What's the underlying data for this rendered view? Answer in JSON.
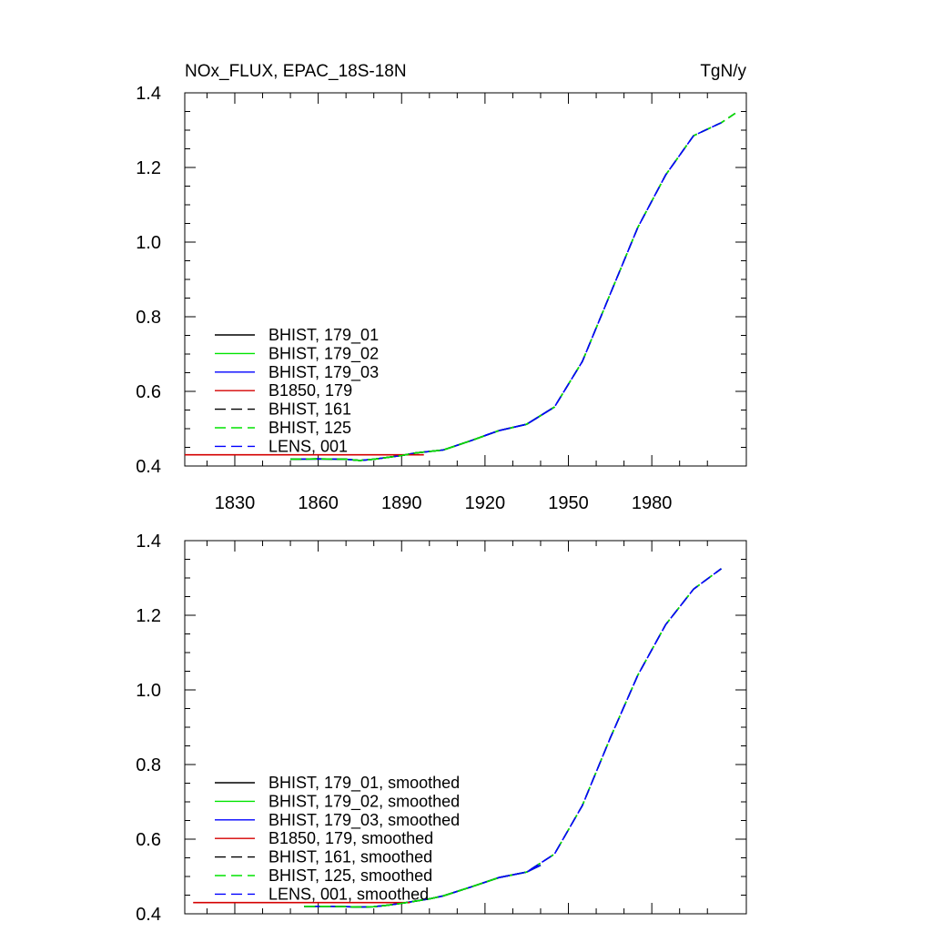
{
  "header": {
    "title_left": "NOx_FLUX, EPAC_18S-18N",
    "title_right": "TgN/y"
  },
  "colors": {
    "black": "#000000",
    "green": "#00e400",
    "blue": "#0000ff",
    "red": "#d40000"
  },
  "chart_data": [
    {
      "type": "line",
      "title": "NOx_FLUX, EPAC_18S-18N",
      "units": "TgN/y",
      "xlim": [
        1812,
        2014
      ],
      "ylim": [
        0.4,
        1.4
      ],
      "xticks": [
        1830,
        1860,
        1890,
        1920,
        1950,
        1980
      ],
      "xtick_labels": [
        "1830",
        "1860",
        "1890",
        "1920",
        "1950",
        "1980"
      ],
      "yticks": [
        0.4,
        0.6,
        0.8,
        1.0,
        1.2,
        1.4
      ],
      "ytick_labels": [
        "0.4",
        "0.6",
        "0.8",
        "1.0",
        "1.2",
        "1.4"
      ],
      "legend_position": "lower-left",
      "series": [
        {
          "name": "BHIST, 179_01",
          "color": "#000000",
          "dash": "solid",
          "x": [
            1850,
            1860,
            1870,
            1875,
            1880,
            1890,
            1895,
            1905,
            1915,
            1925,
            1935,
            1945
          ],
          "y": [
            0.418,
            0.419,
            0.418,
            0.415,
            0.418,
            0.428,
            0.435,
            0.443,
            0.468,
            0.495,
            0.512,
            0.558
          ]
        },
        {
          "name": "BHIST, 179_02",
          "color": "#00e400",
          "dash": "solid",
          "x": [
            1850,
            1860,
            1870,
            1875,
            1880,
            1890,
            1895,
            1905,
            1915,
            1925,
            1935,
            1945
          ],
          "y": [
            0.418,
            0.419,
            0.418,
            0.415,
            0.418,
            0.428,
            0.435,
            0.443,
            0.468,
            0.495,
            0.512,
            0.558
          ]
        },
        {
          "name": "BHIST, 179_03",
          "color": "#0000ff",
          "dash": "solid",
          "x": [
            1850,
            1860,
            1870,
            1875,
            1880,
            1890,
            1895,
            1905,
            1915,
            1925,
            1935,
            1945
          ],
          "y": [
            0.418,
            0.419,
            0.418,
            0.415,
            0.418,
            0.428,
            0.435,
            0.443,
            0.468,
            0.495,
            0.512,
            0.558
          ]
        },
        {
          "name": "B1850, 179",
          "color": "#d40000",
          "dash": "solid",
          "x": [
            1812,
            1898
          ],
          "y": [
            0.43,
            0.43
          ]
        },
        {
          "name": "BHIST, 161",
          "color": "#000000",
          "dash": "dashed",
          "x": [
            1850,
            1860,
            1870,
            1875,
            1880,
            1890,
            1895,
            1905,
            1915,
            1925,
            1935,
            1945,
            1955,
            1965,
            1975,
            1985,
            1995,
            2005,
            2010
          ],
          "y": [
            0.418,
            0.419,
            0.418,
            0.415,
            0.418,
            0.428,
            0.435,
            0.443,
            0.468,
            0.495,
            0.512,
            0.558,
            0.68,
            0.86,
            1.04,
            1.18,
            1.285,
            1.32,
            1.345
          ]
        },
        {
          "name": "BHIST, 125",
          "color": "#00e400",
          "dash": "dashed",
          "x": [
            1850,
            1860,
            1870,
            1875,
            1880,
            1890,
            1895,
            1905,
            1915,
            1925,
            1935,
            1945,
            1955,
            1965,
            1975,
            1985,
            1995,
            2005,
            2010
          ],
          "y": [
            0.418,
            0.419,
            0.418,
            0.415,
            0.418,
            0.428,
            0.435,
            0.443,
            0.468,
            0.495,
            0.512,
            0.558,
            0.68,
            0.86,
            1.04,
            1.18,
            1.285,
            1.32,
            1.345
          ]
        },
        {
          "name": "LENS, 001",
          "color": "#0000ff",
          "dash": "dashed",
          "x": [
            1920,
            1925,
            1935,
            1945,
            1955,
            1965,
            1975,
            1985,
            1995,
            2005
          ],
          "y": [
            0.482,
            0.495,
            0.512,
            0.558,
            0.68,
            0.86,
            1.04,
            1.18,
            1.285,
            1.32
          ]
        }
      ]
    },
    {
      "type": "line",
      "xlim": [
        1812,
        2014
      ],
      "ylim": [
        0.4,
        1.4
      ],
      "xticks": [
        1830,
        1860,
        1890,
        1920,
        1950,
        1980
      ],
      "xtick_labels": [],
      "yticks": [
        0.4,
        0.6,
        0.8,
        1.0,
        1.2,
        1.4
      ],
      "ytick_labels": [
        "0.4",
        "0.6",
        "0.8",
        "1.0",
        "1.2",
        "1.4"
      ],
      "legend_position": "lower-left",
      "series": [
        {
          "name": "BHIST, 179_01, smoothed",
          "color": "#000000",
          "dash": "solid",
          "x": [
            1855,
            1865,
            1870,
            1875,
            1880,
            1885,
            1890,
            1895,
            1900,
            1905,
            1915,
            1925,
            1935,
            1940
          ],
          "y": [
            0.42,
            0.42,
            0.419,
            0.418,
            0.419,
            0.423,
            0.428,
            0.434,
            0.44,
            0.448,
            0.472,
            0.497,
            0.512,
            0.53
          ]
        },
        {
          "name": "BHIST, 179_02, smoothed",
          "color": "#00e400",
          "dash": "solid",
          "x": [
            1855,
            1865,
            1870,
            1875,
            1880,
            1885,
            1890,
            1895,
            1900,
            1905,
            1915,
            1925,
            1935,
            1940
          ],
          "y": [
            0.42,
            0.42,
            0.419,
            0.418,
            0.419,
            0.423,
            0.428,
            0.434,
            0.44,
            0.448,
            0.472,
            0.497,
            0.512,
            0.53
          ]
        },
        {
          "name": "BHIST, 179_03, smoothed",
          "color": "#0000ff",
          "dash": "solid",
          "x": [
            1855,
            1865,
            1870,
            1875,
            1880,
            1885,
            1890,
            1895,
            1900,
            1905,
            1915,
            1925,
            1935,
            1940
          ],
          "y": [
            0.42,
            0.42,
            0.419,
            0.418,
            0.419,
            0.423,
            0.428,
            0.434,
            0.44,
            0.448,
            0.472,
            0.497,
            0.512,
            0.53
          ]
        },
        {
          "name": "B1850, 179, smoothed",
          "color": "#d40000",
          "dash": "solid",
          "x": [
            1815,
            1893
          ],
          "y": [
            0.43,
            0.43
          ]
        },
        {
          "name": "BHIST, 161, smoothed",
          "color": "#000000",
          "dash": "dashed",
          "x": [
            1855,
            1865,
            1870,
            1875,
            1880,
            1885,
            1890,
            1895,
            1900,
            1905,
            1915,
            1925,
            1935,
            1945,
            1955,
            1965,
            1975,
            1985,
            1995,
            2005
          ],
          "y": [
            0.42,
            0.42,
            0.419,
            0.418,
            0.419,
            0.423,
            0.428,
            0.434,
            0.44,
            0.448,
            0.472,
            0.497,
            0.512,
            0.56,
            0.69,
            0.87,
            1.04,
            1.175,
            1.27,
            1.325
          ]
        },
        {
          "name": "BHIST, 125, smoothed",
          "color": "#00e400",
          "dash": "dashed",
          "x": [
            1855,
            1865,
            1870,
            1875,
            1880,
            1885,
            1890,
            1895,
            1900,
            1905,
            1915,
            1925,
            1935,
            1945,
            1955,
            1965,
            1975,
            1985,
            1995,
            2005
          ],
          "y": [
            0.42,
            0.42,
            0.419,
            0.418,
            0.419,
            0.423,
            0.428,
            0.434,
            0.44,
            0.448,
            0.472,
            0.497,
            0.512,
            0.56,
            0.69,
            0.87,
            1.04,
            1.175,
            1.27,
            1.325
          ]
        },
        {
          "name": "LENS, 001, smoothed",
          "color": "#0000ff",
          "dash": "dashed",
          "x": [
            1925,
            1935,
            1945,
            1955,
            1965,
            1975,
            1985,
            1995,
            2005
          ],
          "y": [
            0.497,
            0.512,
            0.56,
            0.69,
            0.87,
            1.04,
            1.175,
            1.27,
            1.325
          ]
        }
      ]
    }
  ]
}
